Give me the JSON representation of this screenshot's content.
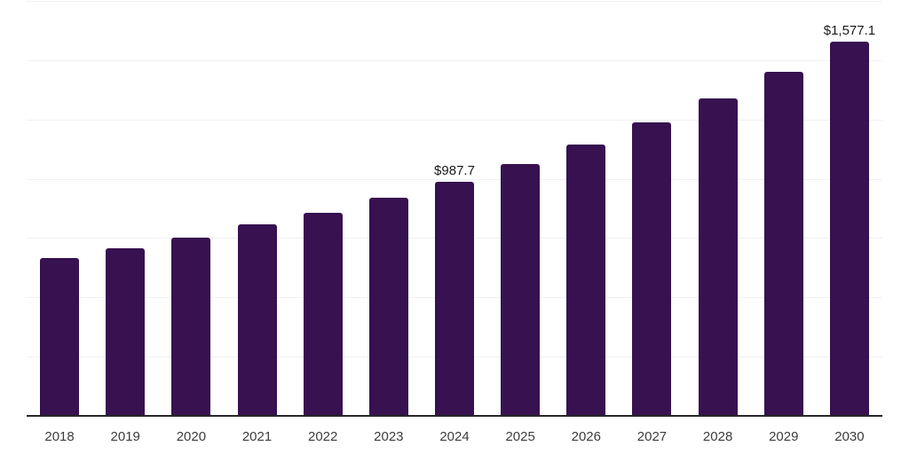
{
  "chart_data": {
    "type": "bar",
    "title": "",
    "xlabel": "",
    "ylabel": "",
    "categories": [
      "2018",
      "2019",
      "2020",
      "2021",
      "2022",
      "2023",
      "2024",
      "2025",
      "2026",
      "2027",
      "2028",
      "2029",
      "2030"
    ],
    "values": [
      665.6,
      706.7,
      751.6,
      807.7,
      856.3,
      919.9,
      987.7,
      1062.0,
      1144.2,
      1237.7,
      1338.7,
      1450.9,
      1577.1
    ],
    "point_labels": {
      "2024": "$987.7",
      "2030": "$1,577.1"
    },
    "ylim": [
      0,
      1750
    ],
    "grid_step": 250,
    "grid": "horizontal",
    "legend": "none",
    "y_axis_tick_labels": "none",
    "colors": {
      "bar": "#371150",
      "grid_line": "#f1f1f3",
      "axis_line": "#26262b",
      "x_tick_label": "#3c3c3c",
      "value_label": "#1a1a1a",
      "background": "#ffffff"
    }
  }
}
